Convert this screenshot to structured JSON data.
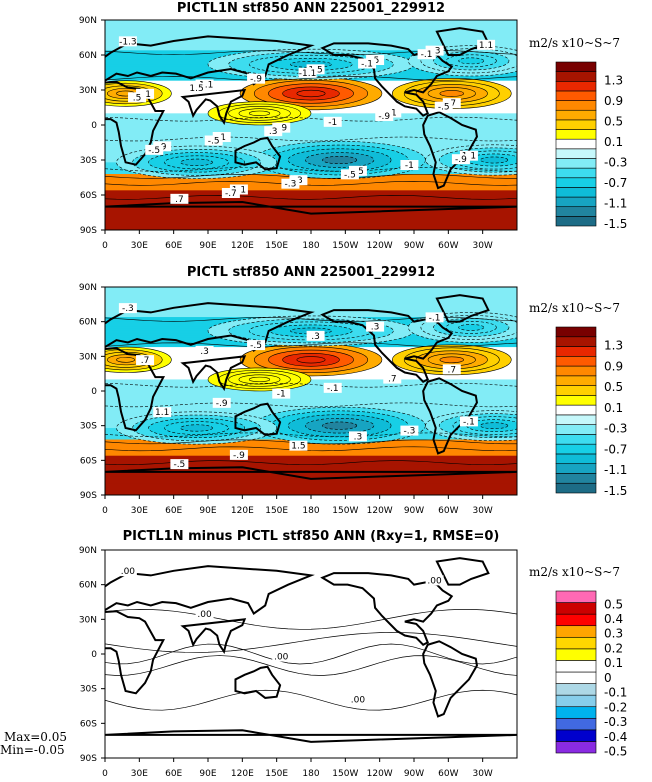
{
  "chart_data": [
    {
      "type": "heatmap",
      "title": "PICTL1N stf850 ANN 225001_229912",
      "unit_label": "m2/s x10~S~7",
      "x_ticks": [
        "0",
        "30E",
        "60E",
        "90E",
        "120E",
        "150E",
        "180",
        "150W",
        "120W",
        "90W",
        "60W",
        "30W"
      ],
      "y_ticks": [
        "90N",
        "60N",
        "30N",
        "0",
        "30S",
        "60S",
        "90S"
      ],
      "xlim": [
        0,
        360
      ],
      "ylim": [
        -90,
        90
      ],
      "color_levels": [
        -1.5,
        -1.3,
        -1.1,
        -0.9,
        -0.7,
        -0.5,
        -0.3,
        -0.1,
        0.1,
        0.3,
        0.5,
        0.7,
        0.9,
        1.1,
        1.3,
        1.5
      ],
      "legend_labels": [
        "1.3",
        "0.9",
        "0.5",
        "0.1",
        "-0.3",
        "-0.7",
        "-1.1",
        "-1.5"
      ],
      "colors": [
        "#1d6c86",
        "#21849f",
        "#17a4c2",
        "#0fbcd8",
        "#17cfe6",
        "#3ddcef",
        "#82ecf6",
        "#c6f8fb",
        "#ffffff",
        "#ffff00",
        "#ffd000",
        "#ffab00",
        "#ff8800",
        "#ff5a00",
        "#e82800",
        "#a71400",
        "#780000"
      ],
      "contour_labels": [
        "-1.3",
        "-1.1",
        "-.9",
        "-.5",
        "-.3",
        "-.1",
        ".1",
        ".3",
        ".5",
        ".7",
        ".9",
        "1.1",
        "1.5",
        "-1",
        "1.1",
        ".7",
        "-.9",
        "-1",
        "-1",
        "1.1",
        "1.5",
        ".3",
        "-.5",
        "-.1",
        ".5",
        "-.5",
        "-.3",
        "-.1",
        "-.5",
        "-.5",
        "-.7",
        "-1.1",
        "-.9",
        "-.9"
      ],
      "features": [
        {
          "kind": "ring",
          "lon": 180,
          "lat": 27,
          "rx": 62,
          "ry": 14,
          "v": 1.3
        },
        {
          "kind": "ring",
          "lon": 303,
          "lat": 27,
          "rx": 52,
          "ry": 13,
          "v": 0.8
        },
        {
          "kind": "ring",
          "lon": 18,
          "lat": 27,
          "rx": 40,
          "ry": 11,
          "v": 0.6
        },
        {
          "kind": "ring",
          "lon": 205,
          "lat": -30,
          "rx": 75,
          "ry": 16,
          "v": -1.3
        },
        {
          "kind": "ring",
          "lon": 80,
          "lat": -32,
          "rx": 70,
          "ry": 14,
          "v": -1.0
        },
        {
          "kind": "ring",
          "lon": 340,
          "lat": -30,
          "rx": 60,
          "ry": 13,
          "v": -0.9
        },
        {
          "kind": "ring",
          "lon": 180,
          "lat": 52,
          "rx": 90,
          "ry": 13,
          "v": -0.9
        },
        {
          "kind": "ring",
          "lon": 320,
          "lat": 55,
          "rx": 55,
          "ry": 13,
          "v": -0.8
        },
        {
          "kind": "ring",
          "lon": 135,
          "lat": 10,
          "rx": 45,
          "ry": 10,
          "v": 0.3
        }
      ],
      "statistics": null
    },
    {
      "type": "heatmap",
      "title": "PICTL stf850 ANN 225001_229912",
      "unit_label": "m2/s x10~S~7",
      "x_ticks": [
        "0",
        "30E",
        "60E",
        "90E",
        "120E",
        "150E",
        "180",
        "150W",
        "120W",
        "90W",
        "60W",
        "30W"
      ],
      "y_ticks": [
        "90N",
        "60N",
        "30N",
        "0",
        "30S",
        "60S",
        "90S"
      ],
      "xlim": [
        0,
        360
      ],
      "ylim": [
        -90,
        90
      ],
      "color_levels": [
        -1.5,
        -1.3,
        -1.1,
        -0.9,
        -0.7,
        -0.5,
        -0.3,
        -0.1,
        0.1,
        0.3,
        0.5,
        0.7,
        0.9,
        1.1,
        1.3,
        1.5
      ],
      "legend_labels": [
        "1.3",
        "0.9",
        "0.5",
        "0.1",
        "-0.3",
        "-0.7",
        "-1.1",
        "-1.5"
      ],
      "colors": [
        "#1d6c86",
        "#21849f",
        "#17a4c2",
        "#0fbcd8",
        "#17cfe6",
        "#3ddcef",
        "#82ecf6",
        "#c6f8fb",
        "#ffffff",
        "#ffff00",
        "#ffd000",
        "#ffab00",
        "#ff8800",
        "#ff5a00",
        "#e82800",
        "#a71400",
        "#780000"
      ],
      "contour_labels": [
        "-.3",
        ".3",
        "-1",
        ".3",
        "-.1",
        ".7",
        "-.9",
        "1.5",
        ".3",
        ".7",
        "1.1",
        "-.9",
        ".3",
        ".7",
        "-.1",
        "-.5",
        "-.5",
        "-.1",
        "-.3"
      ],
      "features": [
        {
          "kind": "ring",
          "lon": 180,
          "lat": 27,
          "rx": 62,
          "ry": 14,
          "v": 1.3
        },
        {
          "kind": "ring",
          "lon": 303,
          "lat": 27,
          "rx": 52,
          "ry": 13,
          "v": 0.8
        },
        {
          "kind": "ring",
          "lon": 18,
          "lat": 27,
          "rx": 40,
          "ry": 11,
          "v": 0.6
        },
        {
          "kind": "ring",
          "lon": 205,
          "lat": -30,
          "rx": 75,
          "ry": 16,
          "v": -1.3
        },
        {
          "kind": "ring",
          "lon": 80,
          "lat": -32,
          "rx": 70,
          "ry": 14,
          "v": -1.0
        },
        {
          "kind": "ring",
          "lon": 340,
          "lat": -30,
          "rx": 60,
          "ry": 13,
          "v": -0.9
        },
        {
          "kind": "ring",
          "lon": 180,
          "lat": 52,
          "rx": 90,
          "ry": 13,
          "v": -0.9
        },
        {
          "kind": "ring",
          "lon": 320,
          "lat": 55,
          "rx": 55,
          "ry": 13,
          "v": -0.8
        },
        {
          "kind": "ring",
          "lon": 135,
          "lat": 10,
          "rx": 45,
          "ry": 10,
          "v": 0.3
        }
      ],
      "statistics": null
    },
    {
      "type": "heatmap",
      "title": "PICTL1N minus PICTL stf850 ANN (Rxy=1, RMSE=0)",
      "unit_label": "m2/s x10~S~7",
      "x_ticks": [
        "0",
        "30E",
        "60E",
        "90E",
        "120E",
        "150E",
        "180",
        "150W",
        "120W",
        "90W",
        "60W",
        "30W"
      ],
      "y_ticks": [
        "90N",
        "60N",
        "30N",
        "0",
        "30S",
        "60S",
        "90S"
      ],
      "xlim": [
        0,
        360
      ],
      "ylim": [
        -90,
        90
      ],
      "color_levels": [
        -0.5,
        -0.4,
        -0.3,
        -0.2,
        -0.1,
        0,
        0.1,
        0.2,
        0.3,
        0.4,
        0.5
      ],
      "legend_labels": [
        "0.5",
        "0.4",
        "0.3",
        "0.2",
        "0.1",
        "0",
        "-0.1",
        "-0.2",
        "-0.3",
        "-0.4",
        "-0.5"
      ],
      "colors": [
        "#8a2be2",
        "#0000cd",
        "#4169e1",
        "#00b2ee",
        "#87ceeb",
        "#add8e6",
        "#ffffff",
        "#ffffff",
        "#ffff00",
        "#ffd700",
        "#ffa500",
        "#ff0000",
        "#cc0000",
        "#ff69b4"
      ],
      "contour_labels": [
        ".00",
        ".00",
        ".00",
        ".00",
        ".00"
      ],
      "features": [],
      "statistics": {
        "max": "Max=0.05",
        "min": "Min=-0.05"
      }
    }
  ]
}
